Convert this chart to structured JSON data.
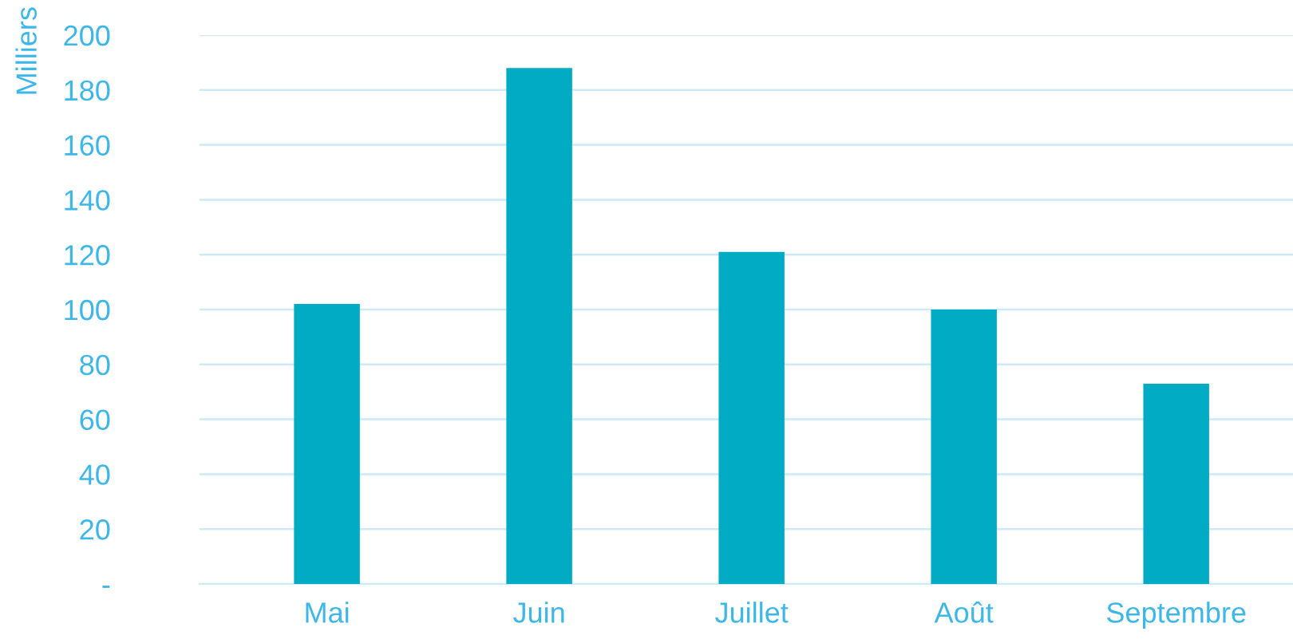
{
  "chart_data": {
    "type": "bar",
    "ylabel": "Milliers",
    "categories": [
      "Mai",
      "Juin",
      "Juillet",
      "Août",
      "Septembre"
    ],
    "values": [
      102,
      188,
      121,
      100,
      73
    ],
    "color": "#00abc3",
    "ylim": [
      0,
      200
    ],
    "yticks": [
      {
        "value": 0,
        "label": "-"
      },
      20,
      40,
      60,
      80,
      100,
      120,
      140,
      160,
      180,
      200
    ],
    "grid": "y"
  }
}
